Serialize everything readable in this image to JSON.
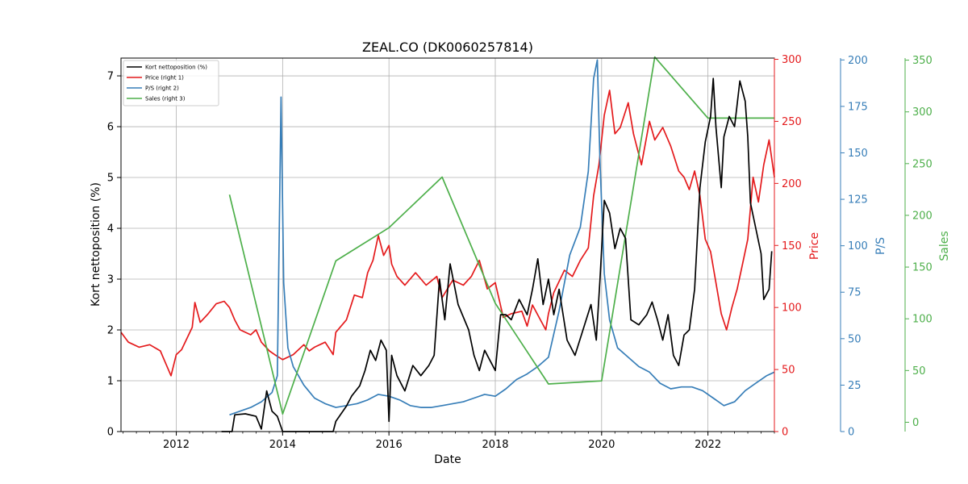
{
  "chart_data": {
    "type": "line",
    "title": "ZEAL.CO (DK0060257814)",
    "xlabel": "Date",
    "x_ticks": [
      "2012",
      "2014",
      "2016",
      "2018",
      "2020",
      "2022"
    ],
    "x_range": [
      2010.96,
      2023.25
    ],
    "grid": true,
    "legend_position": "top-left",
    "axes": {
      "left": {
        "label": "Kort nettoposition (%)",
        "range": [
          0,
          7.35
        ],
        "ticks": [
          0,
          1,
          2,
          3,
          4,
          5,
          6,
          7
        ],
        "color": "#000000"
      },
      "right1": {
        "label": "Price",
        "range": [
          0,
          301
        ],
        "ticks": [
          0,
          50,
          100,
          150,
          200,
          250,
          300
        ],
        "color": "#e41a1c"
      },
      "right2": {
        "label": "P/S",
        "range": [
          0,
          201
        ],
        "ticks": [
          0,
          25,
          50,
          75,
          100,
          125,
          150,
          175,
          200
        ],
        "color": "#377eb8"
      },
      "right3": {
        "label": "Sales",
        "range": [
          -9,
          352
        ],
        "ticks": [
          0,
          50,
          100,
          150,
          200,
          250,
          300,
          350
        ],
        "color": "#4daf4a"
      }
    },
    "series": [
      {
        "name": "Kort nettoposition (%)",
        "axis": "left",
        "color": "#000000",
        "points": [
          [
            2012.85,
            0
          ],
          [
            2013.05,
            0
          ],
          [
            2013.1,
            0.33
          ],
          [
            2013.3,
            0.35
          ],
          [
            2013.5,
            0.3
          ],
          [
            2013.6,
            0.05
          ],
          [
            2013.7,
            0.8
          ],
          [
            2013.8,
            0.4
          ],
          [
            2013.9,
            0.3
          ],
          [
            2014.0,
            0
          ],
          [
            2014.5,
            0
          ],
          [
            2014.95,
            0
          ],
          [
            2015.0,
            0.2
          ],
          [
            2015.2,
            0.5
          ],
          [
            2015.3,
            0.7
          ],
          [
            2015.45,
            0.9
          ],
          [
            2015.55,
            1.2
          ],
          [
            2015.65,
            1.6
          ],
          [
            2015.75,
            1.4
          ],
          [
            2015.85,
            1.8
          ],
          [
            2015.95,
            1.6
          ],
          [
            2016.0,
            0.2
          ],
          [
            2016.05,
            1.5
          ],
          [
            2016.15,
            1.1
          ],
          [
            2016.3,
            0.8
          ],
          [
            2016.45,
            1.3
          ],
          [
            2016.6,
            1.1
          ],
          [
            2016.75,
            1.3
          ],
          [
            2016.85,
            1.5
          ],
          [
            2016.95,
            3.0
          ],
          [
            2017.05,
            2.2
          ],
          [
            2017.15,
            3.3
          ],
          [
            2017.3,
            2.5
          ],
          [
            2017.5,
            2.0
          ],
          [
            2017.6,
            1.5
          ],
          [
            2017.7,
            1.2
          ],
          [
            2017.8,
            1.6
          ],
          [
            2017.9,
            1.4
          ],
          [
            2018.0,
            1.2
          ],
          [
            2018.1,
            2.3
          ],
          [
            2018.2,
            2.3
          ],
          [
            2018.3,
            2.2
          ],
          [
            2018.45,
            2.6
          ],
          [
            2018.6,
            2.3
          ],
          [
            2018.7,
            2.8
          ],
          [
            2018.8,
            3.4
          ],
          [
            2018.9,
            2.5
          ],
          [
            2019.0,
            3.0
          ],
          [
            2019.1,
            2.3
          ],
          [
            2019.2,
            2.8
          ],
          [
            2019.35,
            1.8
          ],
          [
            2019.5,
            1.5
          ],
          [
            2019.65,
            2.0
          ],
          [
            2019.8,
            2.5
          ],
          [
            2019.9,
            1.8
          ],
          [
            2019.97,
            3.0
          ],
          [
            2020.05,
            4.55
          ],
          [
            2020.15,
            4.3
          ],
          [
            2020.25,
            3.6
          ],
          [
            2020.35,
            4.0
          ],
          [
            2020.45,
            3.8
          ],
          [
            2020.55,
            2.2
          ],
          [
            2020.7,
            2.1
          ],
          [
            2020.85,
            2.3
          ],
          [
            2020.95,
            2.55
          ],
          [
            2021.05,
            2.2
          ],
          [
            2021.15,
            1.8
          ],
          [
            2021.25,
            2.3
          ],
          [
            2021.35,
            1.5
          ],
          [
            2021.45,
            1.3
          ],
          [
            2021.55,
            1.9
          ],
          [
            2021.65,
            2.0
          ],
          [
            2021.75,
            2.8
          ],
          [
            2021.85,
            4.8
          ],
          [
            2021.95,
            5.7
          ],
          [
            2022.05,
            6.2
          ],
          [
            2022.1,
            6.95
          ],
          [
            2022.15,
            6.0
          ],
          [
            2022.2,
            5.4
          ],
          [
            2022.25,
            4.8
          ],
          [
            2022.3,
            5.8
          ],
          [
            2022.4,
            6.2
          ],
          [
            2022.5,
            6.0
          ],
          [
            2022.6,
            6.9
          ],
          [
            2022.7,
            6.5
          ],
          [
            2022.75,
            5.8
          ],
          [
            2022.8,
            4.5
          ],
          [
            2022.9,
            4.0
          ],
          [
            2023.0,
            3.5
          ],
          [
            2023.05,
            2.6
          ],
          [
            2023.15,
            2.8
          ],
          [
            2023.2,
            3.55
          ]
        ]
      },
      {
        "name": "Price (right 1)",
        "axis": "right1",
        "color": "#e41a1c",
        "points": [
          [
            2010.96,
            80
          ],
          [
            2011.1,
            72
          ],
          [
            2011.3,
            68
          ],
          [
            2011.5,
            70
          ],
          [
            2011.7,
            65
          ],
          [
            2011.8,
            55
          ],
          [
            2011.9,
            45
          ],
          [
            2012.0,
            62
          ],
          [
            2012.1,
            66
          ],
          [
            2012.2,
            75
          ],
          [
            2012.3,
            84
          ],
          [
            2012.35,
            104
          ],
          [
            2012.45,
            88
          ],
          [
            2012.6,
            95
          ],
          [
            2012.75,
            103
          ],
          [
            2012.9,
            105
          ],
          [
            2013.0,
            100
          ],
          [
            2013.1,
            90
          ],
          [
            2013.2,
            82
          ],
          [
            2013.4,
            78
          ],
          [
            2013.5,
            82
          ],
          [
            2013.6,
            72
          ],
          [
            2013.75,
            65
          ],
          [
            2013.85,
            62
          ],
          [
            2014.0,
            58
          ],
          [
            2014.2,
            62
          ],
          [
            2014.4,
            70
          ],
          [
            2014.5,
            65
          ],
          [
            2014.6,
            68
          ],
          [
            2014.8,
            72
          ],
          [
            2014.95,
            62
          ],
          [
            2015.0,
            80
          ],
          [
            2015.2,
            90
          ],
          [
            2015.35,
            110
          ],
          [
            2015.5,
            108
          ],
          [
            2015.6,
            128
          ],
          [
            2015.7,
            138
          ],
          [
            2015.8,
            158
          ],
          [
            2015.9,
            142
          ],
          [
            2016.0,
            150
          ],
          [
            2016.05,
            135
          ],
          [
            2016.15,
            125
          ],
          [
            2016.3,
            118
          ],
          [
            2016.5,
            128
          ],
          [
            2016.7,
            118
          ],
          [
            2016.9,
            125
          ],
          [
            2017.0,
            108
          ],
          [
            2017.2,
            122
          ],
          [
            2017.4,
            118
          ],
          [
            2017.55,
            125
          ],
          [
            2017.7,
            138
          ],
          [
            2017.85,
            115
          ],
          [
            2018.0,
            120
          ],
          [
            2018.15,
            92
          ],
          [
            2018.3,
            95
          ],
          [
            2018.5,
            97
          ],
          [
            2018.6,
            85
          ],
          [
            2018.7,
            102
          ],
          [
            2018.85,
            90
          ],
          [
            2018.95,
            82
          ],
          [
            2019.0,
            95
          ],
          [
            2019.1,
            112
          ],
          [
            2019.3,
            130
          ],
          [
            2019.45,
            125
          ],
          [
            2019.6,
            138
          ],
          [
            2019.75,
            148
          ],
          [
            2019.85,
            190
          ],
          [
            2019.95,
            215
          ],
          [
            2020.05,
            255
          ],
          [
            2020.15,
            275
          ],
          [
            2020.25,
            240
          ],
          [
            2020.35,
            245
          ],
          [
            2020.5,
            265
          ],
          [
            2020.6,
            240
          ],
          [
            2020.75,
            215
          ],
          [
            2020.9,
            250
          ],
          [
            2021.0,
            235
          ],
          [
            2021.15,
            245
          ],
          [
            2021.3,
            230
          ],
          [
            2021.45,
            210
          ],
          [
            2021.55,
            205
          ],
          [
            2021.65,
            195
          ],
          [
            2021.75,
            210
          ],
          [
            2021.85,
            190
          ],
          [
            2021.95,
            155
          ],
          [
            2022.05,
            145
          ],
          [
            2022.15,
            120
          ],
          [
            2022.25,
            95
          ],
          [
            2022.35,
            82
          ],
          [
            2022.45,
            100
          ],
          [
            2022.55,
            115
          ],
          [
            2022.65,
            135
          ],
          [
            2022.75,
            155
          ],
          [
            2022.85,
            205
          ],
          [
            2022.95,
            185
          ],
          [
            2023.05,
            215
          ],
          [
            2023.15,
            235
          ],
          [
            2023.25,
            205
          ]
        ]
      },
      {
        "name": "P/S (right 2)",
        "axis": "right2",
        "color": "#377eb8",
        "points": [
          [
            2013.0,
            9
          ],
          [
            2013.2,
            11
          ],
          [
            2013.4,
            13
          ],
          [
            2013.6,
            16
          ],
          [
            2013.8,
            21
          ],
          [
            2013.9,
            30
          ],
          [
            2013.97,
            180
          ],
          [
            2014.02,
            80
          ],
          [
            2014.1,
            45
          ],
          [
            2014.2,
            35
          ],
          [
            2014.4,
            25
          ],
          [
            2014.6,
            18
          ],
          [
            2014.8,
            15
          ],
          [
            2015.0,
            13
          ],
          [
            2015.2,
            14
          ],
          [
            2015.4,
            15
          ],
          [
            2015.6,
            17
          ],
          [
            2015.8,
            20
          ],
          [
            2016.0,
            19
          ],
          [
            2016.2,
            17
          ],
          [
            2016.4,
            14
          ],
          [
            2016.6,
            13
          ],
          [
            2016.8,
            13
          ],
          [
            2017.0,
            14
          ],
          [
            2017.2,
            15
          ],
          [
            2017.4,
            16
          ],
          [
            2017.6,
            18
          ],
          [
            2017.8,
            20
          ],
          [
            2018.0,
            19
          ],
          [
            2018.2,
            23
          ],
          [
            2018.4,
            28
          ],
          [
            2018.6,
            31
          ],
          [
            2018.8,
            35
          ],
          [
            2019.0,
            40
          ],
          [
            2019.2,
            65
          ],
          [
            2019.4,
            95
          ],
          [
            2019.6,
            110
          ],
          [
            2019.75,
            140
          ],
          [
            2019.85,
            190
          ],
          [
            2019.92,
            200
          ],
          [
            2019.97,
            145
          ],
          [
            2020.05,
            85
          ],
          [
            2020.15,
            60
          ],
          [
            2020.3,
            45
          ],
          [
            2020.5,
            40
          ],
          [
            2020.7,
            35
          ],
          [
            2020.9,
            32
          ],
          [
            2021.1,
            26
          ],
          [
            2021.3,
            23
          ],
          [
            2021.5,
            24
          ],
          [
            2021.7,
            24
          ],
          [
            2021.9,
            22
          ],
          [
            2022.1,
            18
          ],
          [
            2022.3,
            14
          ],
          [
            2022.5,
            16
          ],
          [
            2022.7,
            22
          ],
          [
            2022.9,
            26
          ],
          [
            2023.1,
            30
          ],
          [
            2023.25,
            32
          ]
        ]
      },
      {
        "name": "Sales (right 3)",
        "axis": "right3",
        "color": "#4daf4a",
        "points": [
          [
            2013.0,
            220
          ],
          [
            2014.0,
            8
          ],
          [
            2015.0,
            156
          ],
          [
            2016.0,
            188
          ],
          [
            2017.0,
            237
          ],
          [
            2018.0,
            115
          ],
          [
            2019.0,
            37
          ],
          [
            2020.0,
            40
          ],
          [
            2021.0,
            353
          ],
          [
            2022.0,
            294
          ],
          [
            2023.25,
            294
          ]
        ]
      }
    ]
  }
}
